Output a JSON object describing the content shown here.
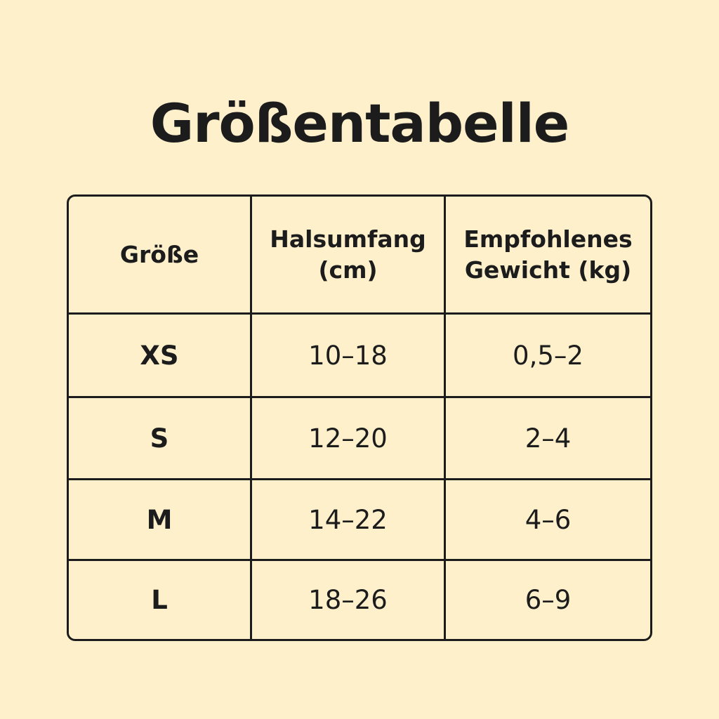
{
  "title": "Größentabelle",
  "table": {
    "headers": [
      "Größe",
      "Halsumfang\n(cm)",
      "Empfohlenes\nGewicht (kg)"
    ],
    "rows": [
      [
        "XS",
        "10–18",
        "0,5–2"
      ],
      [
        "S",
        "12–20",
        "2–4"
      ],
      [
        "M",
        "14–22",
        "4–6"
      ],
      [
        "L",
        "18–26",
        "6–9"
      ]
    ]
  },
  "colors": {
    "background": "#FDF0CB",
    "text": "#1c1c1c",
    "border": "#1c1c1c"
  }
}
